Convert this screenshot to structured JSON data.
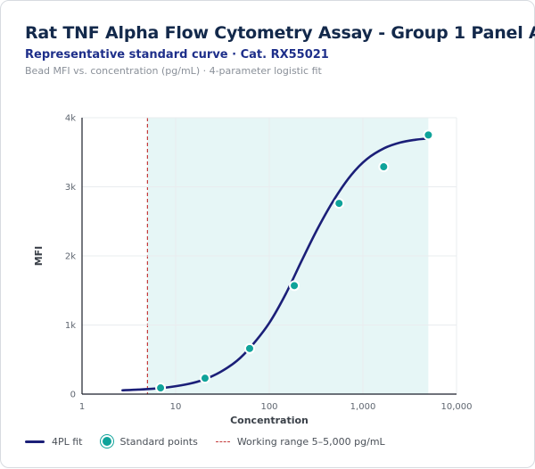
{
  "header": {
    "title": "Rat TNF Alpha Flow Cytometry Assay - Group 1 Panel A",
    "subtitle": "Representative standard curve · Cat. RX55021",
    "caption": "Bead MFI vs. concentration (pg/mL) · 4-parameter logistic fit"
  },
  "legend": {
    "fit_label": "4PL fit",
    "points_label": "Standard points",
    "range_label": "Working range 5–5,000 pg/mL"
  },
  "colors": {
    "fit_line": "#1b1f78",
    "points": "#0fa39a",
    "range_fill": "#e6f6f6",
    "lloq_line": "#c43a3a",
    "grid": "#e9ecef"
  },
  "chart_data": {
    "type": "scatter",
    "title": "",
    "xlabel": "Concentration",
    "ylabel": "MFI",
    "x_scale": "log",
    "xlim": [
      1,
      10000
    ],
    "ylim": [
      0,
      4000
    ],
    "x_ticks": [
      1,
      10,
      100,
      1000,
      10000
    ],
    "x_tick_labels": [
      "1",
      "10",
      "100",
      "1,000",
      "10,000"
    ],
    "y_ticks": [
      0,
      1000,
      2000,
      3000,
      4000
    ],
    "y_tick_labels": [
      "0",
      "1k",
      "2k",
      "3k",
      "4k"
    ],
    "grid": true,
    "legend_position": "bottom",
    "working_range": [
      5,
      5000
    ],
    "series": [
      {
        "name": "Standard points",
        "x": [
          6.9,
          20.6,
          61.7,
          185,
          556,
          1667,
          5000
        ],
        "y": [
          90,
          230,
          660,
          1570,
          2760,
          3290,
          3750
        ]
      },
      {
        "name": "4PL fit",
        "x": [
          2.7,
          4,
          6,
          9,
          14,
          20,
          30,
          45,
          65,
          100,
          150,
          220,
          330,
          500,
          750,
          1100,
          1700,
          2500,
          3600,
          5000
        ],
        "y": [
          55,
          65,
          80,
          105,
          150,
          210,
          320,
          480,
          700,
          1030,
          1450,
          1920,
          2400,
          2830,
          3170,
          3400,
          3560,
          3640,
          3680,
          3700
        ]
      }
    ]
  }
}
